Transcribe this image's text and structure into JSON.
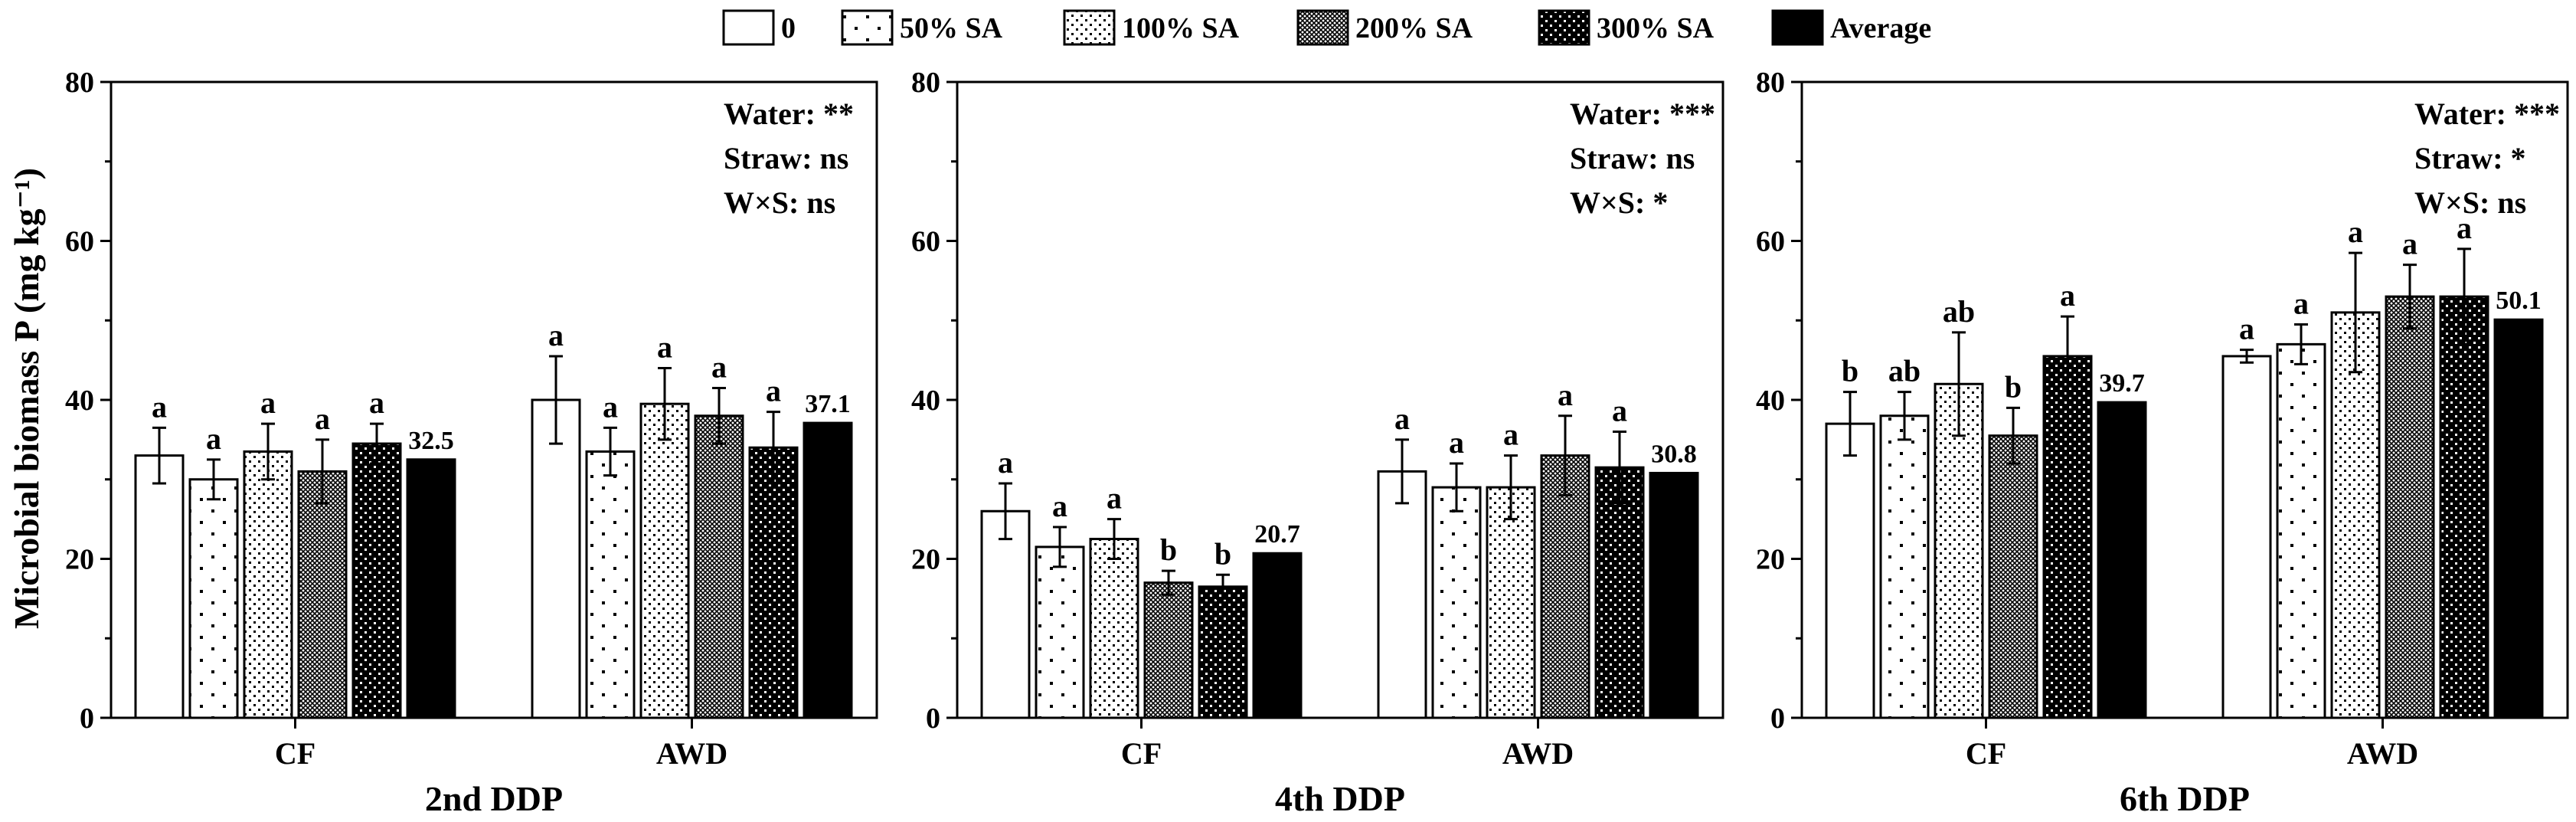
{
  "chart_data": {
    "type": "bar",
    "ylabel": "Microbial biomass P (mg kg⁻¹)",
    "ylim": [
      0,
      80
    ],
    "yticks": [
      0,
      20,
      40,
      60,
      80
    ],
    "categories": [
      "CF",
      "AWD"
    ],
    "legend": {
      "position": "top-center",
      "entries": [
        {
          "label": "0",
          "pattern": "white"
        },
        {
          "label": "50% SA",
          "pattern": "sparse-dots"
        },
        {
          "label": "100% SA",
          "pattern": "dense-dots"
        },
        {
          "label": "200% SA",
          "pattern": "crosshatch"
        },
        {
          "label": "300% SA",
          "pattern": "black-dots"
        },
        {
          "label": "Average",
          "pattern": "solid-black"
        }
      ]
    },
    "panels": [
      {
        "title": "2nd DDP",
        "stats": [
          "Water: **",
          "Straw: ns",
          "W×S: ns"
        ],
        "groups": [
          {
            "category": "CF",
            "values": [
              33,
              30,
              33.5,
              31,
              34.5
            ],
            "errors": [
              3.5,
              2.5,
              3.5,
              4,
              2.5
            ],
            "letters": [
              "a",
              "a",
              "a",
              "a",
              "a"
            ],
            "average": 32.5,
            "average_label": "32.5"
          },
          {
            "category": "AWD",
            "values": [
              40,
              33.5,
              39.5,
              38,
              34
            ],
            "errors": [
              5.5,
              3,
              4.5,
              3.5,
              4.5
            ],
            "letters": [
              "a",
              "a",
              "a",
              "a",
              "a"
            ],
            "average": 37.1,
            "average_label": "37.1"
          }
        ]
      },
      {
        "title": "4th DDP",
        "stats": [
          "Water: ***",
          "Straw: ns",
          "W×S: *"
        ],
        "groups": [
          {
            "category": "CF",
            "values": [
              26,
              21.5,
              22.5,
              17,
              16.5
            ],
            "errors": [
              3.5,
              2.5,
              2.5,
              1.5,
              1.5
            ],
            "letters": [
              "a",
              "a",
              "a",
              "b",
              "b"
            ],
            "average": 20.7,
            "average_label": "20.7"
          },
          {
            "category": "AWD",
            "values": [
              31,
              29,
              29,
              33,
              31.5
            ],
            "errors": [
              4,
              3,
              4,
              5,
              4.5
            ],
            "letters": [
              "a",
              "a",
              "a",
              "a",
              "a"
            ],
            "average": 30.8,
            "average_label": "30.8"
          }
        ]
      },
      {
        "title": "6th DDP",
        "stats": [
          "Water: ***",
          "Straw: *",
          "W×S: ns"
        ],
        "groups": [
          {
            "category": "CF",
            "values": [
              37,
              38,
              42,
              35.5,
              45.5
            ],
            "errors": [
              4,
              3,
              6.5,
              3.5,
              5
            ],
            "letters": [
              "b",
              "ab",
              "ab",
              "b",
              "a"
            ],
            "average": 39.7,
            "average_label": "39.7"
          },
          {
            "category": "AWD",
            "values": [
              45.5,
              47,
              51,
              53,
              53
            ],
            "errors": [
              0.8,
              2.5,
              7.5,
              4,
              6
            ],
            "letters": [
              "a",
              "a",
              "a",
              "a",
              "a"
            ],
            "average": 50.1,
            "average_label": "50.1"
          }
        ]
      }
    ]
  }
}
